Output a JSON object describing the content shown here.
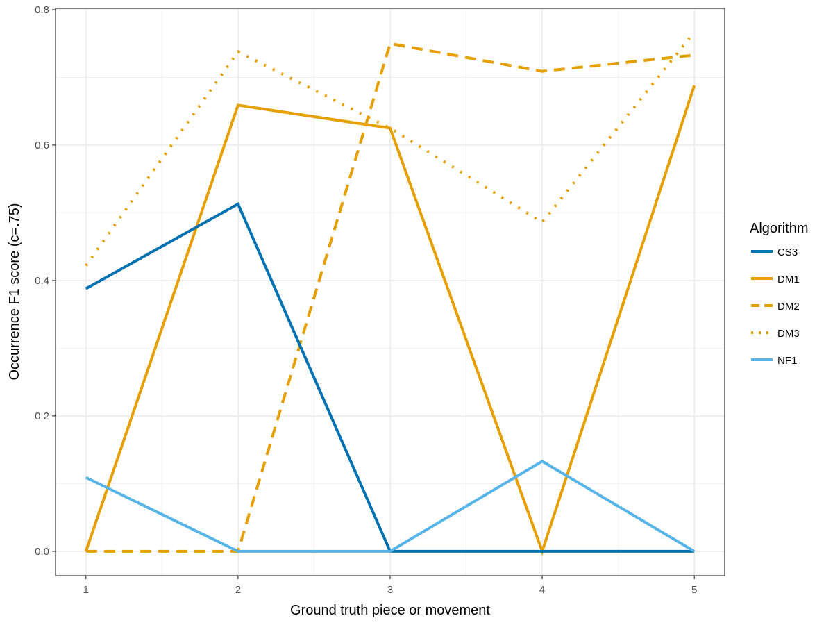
{
  "chart_data": {
    "type": "line",
    "title": "",
    "xlabel": "Ground truth piece or movement",
    "ylabel": "Occurrence F1 score (c=.75)",
    "x": [
      1,
      2,
      3,
      4,
      5
    ],
    "xlim": [
      0.8,
      5.2
    ],
    "ylim": [
      -0.036,
      0.802
    ],
    "xticks": [
      1,
      2,
      3,
      4,
      5
    ],
    "yticks": [
      0.0,
      0.2,
      0.4,
      0.6,
      0.8
    ],
    "ytick_labels": [
      "0.0",
      "0.2",
      "0.4",
      "0.6",
      "0.8"
    ],
    "grid": true,
    "legend": {
      "title": "Algorithm",
      "position": "right"
    },
    "series": [
      {
        "name": "CS3",
        "color": "#0072b2",
        "linetype": "solid",
        "values": [
          0.388,
          0.513,
          0.0,
          0.0,
          0.0
        ]
      },
      {
        "name": "DM1",
        "color": "#e69f00",
        "linetype": "solid",
        "values": [
          0.0,
          0.659,
          0.625,
          0.0,
          0.688
        ]
      },
      {
        "name": "DM2",
        "color": "#e69f00",
        "linetype": "dashed",
        "values": [
          0.0,
          0.0,
          0.75,
          0.709,
          0.733
        ]
      },
      {
        "name": "DM3",
        "color": "#e69f00",
        "linetype": "dotted",
        "values": [
          0.422,
          0.738,
          0.625,
          0.486,
          0.767
        ]
      },
      {
        "name": "NF1",
        "color": "#56b4e9",
        "linetype": "solid",
        "values": [
          0.109,
          0.0,
          0.0,
          0.133,
          0.0
        ]
      }
    ]
  }
}
